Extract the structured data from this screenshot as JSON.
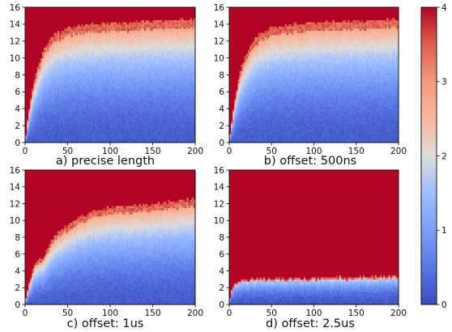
{
  "chart_data": {
    "type": "heatmap",
    "colormap": "coolwarm",
    "colorbar": {
      "min": 0,
      "max": 4,
      "ticks": [
        0,
        1,
        2,
        3,
        4
      ]
    },
    "panels": [
      {
        "caption": "a) precise length",
        "xlim": [
          0,
          200
        ],
        "ylim": [
          0,
          16
        ],
        "xticks": [
          0,
          50,
          100,
          150,
          200
        ],
        "yticks": [
          0,
          2,
          4,
          6,
          8,
          10,
          12,
          14,
          16
        ],
        "pattern": "saturating",
        "boundary_points": [
          [
            0,
            0.3
          ],
          [
            4,
            3.5
          ],
          [
            8,
            6
          ],
          [
            12,
            8
          ],
          [
            18,
            10
          ],
          [
            25,
            11.6
          ],
          [
            35,
            12.8
          ],
          [
            50,
            13.6
          ],
          [
            75,
            14.0
          ],
          [
            100,
            14.2
          ],
          [
            150,
            14.4
          ],
          [
            200,
            14.6
          ]
        ]
      },
      {
        "caption": "b) offset: 500ns",
        "xlim": [
          0,
          200
        ],
        "ylim": [
          0,
          16
        ],
        "xticks": [
          0,
          50,
          100,
          150,
          200
        ],
        "yticks": [
          0,
          2,
          4,
          6,
          8,
          10,
          12,
          14,
          16
        ],
        "pattern": "saturating",
        "boundary_points": [
          [
            0,
            0.3
          ],
          [
            4,
            3.5
          ],
          [
            8,
            6
          ],
          [
            12,
            8
          ],
          [
            18,
            10
          ],
          [
            25,
            11.6
          ],
          [
            35,
            12.8
          ],
          [
            50,
            13.6
          ],
          [
            75,
            14.0
          ],
          [
            100,
            14.2
          ],
          [
            150,
            14.4
          ],
          [
            200,
            14.6
          ]
        ]
      },
      {
        "caption": "c) offset: 1us",
        "xlim": [
          0,
          200
        ],
        "ylim": [
          0,
          16
        ],
        "xticks": [
          0,
          50,
          100,
          150,
          200
        ],
        "yticks": [
          0,
          2,
          4,
          6,
          8,
          10,
          12,
          14,
          16
        ],
        "pattern": "saturating",
        "boundary_points": [
          [
            0,
            0.3
          ],
          [
            5,
            2.5
          ],
          [
            10,
            4.5
          ],
          [
            15,
            5.2
          ],
          [
            22,
            5.8
          ],
          [
            30,
            7.5
          ],
          [
            40,
            8.8
          ],
          [
            55,
            9.8
          ],
          [
            75,
            11.0
          ],
          [
            100,
            11.6
          ],
          [
            150,
            12.0
          ],
          [
            200,
            12.6
          ]
        ]
      },
      {
        "caption": "d) offset: 2.5us",
        "xlim": [
          0,
          200
        ],
        "ylim": [
          0,
          16
        ],
        "xticks": [
          0,
          50,
          100,
          150,
          200
        ],
        "yticks": [
          0,
          2,
          4,
          6,
          8,
          10,
          12,
          14,
          16
        ],
        "pattern": "flat",
        "boundary_points": [
          [
            0,
            0.2
          ],
          [
            3,
            1.8
          ],
          [
            8,
            2.6
          ],
          [
            20,
            3.0
          ],
          [
            50,
            3.1
          ],
          [
            100,
            3.2
          ],
          [
            150,
            3.3
          ],
          [
            200,
            3.4
          ]
        ]
      }
    ]
  }
}
